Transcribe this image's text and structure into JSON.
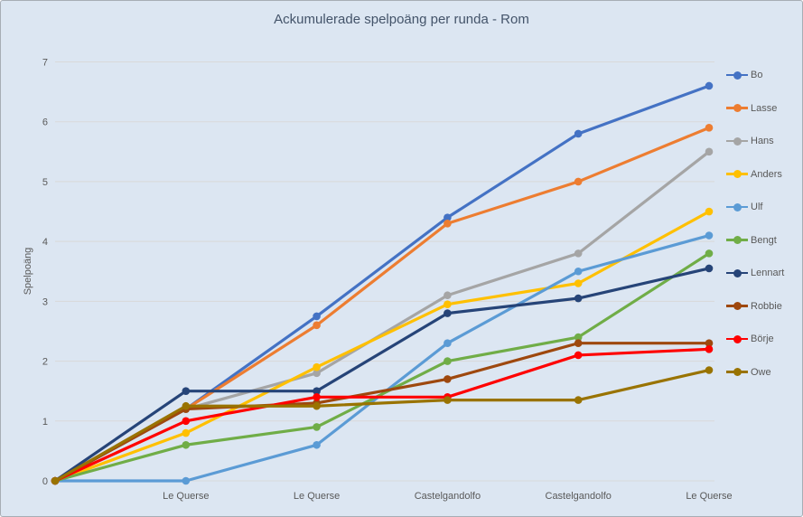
{
  "chart_data": {
    "type": "line",
    "title": "Ackumulerade spelpoäng per runda - Rom",
    "ylabel": "Spelpoäng",
    "xlabel": "",
    "ylim": [
      0,
      7
    ],
    "ytick_step": 1,
    "grid": true,
    "legend_position": "right",
    "background_color": "#dce6f2",
    "gridline_color": "#d9d9d9",
    "text_color": "#595959",
    "title_color": "#44546a",
    "categories": [
      "",
      "Le Querse",
      "Le Querse",
      "Castelgandolfo",
      "Castelgandolfo",
      "Le Querse"
    ],
    "series": [
      {
        "name": "Bo",
        "color": "#4472C4",
        "values": [
          0,
          1.2,
          2.75,
          4.4,
          5.8,
          6.6
        ]
      },
      {
        "name": "Lasse",
        "color": "#ED7D31",
        "values": [
          0,
          1.2,
          2.6,
          4.3,
          5.0,
          5.9
        ]
      },
      {
        "name": "Hans",
        "color": "#A5A5A5",
        "values": [
          0,
          1.2,
          1.8,
          3.1,
          3.8,
          5.5
        ]
      },
      {
        "name": "Anders",
        "color": "#FFC000",
        "values": [
          0,
          0.8,
          1.9,
          2.95,
          3.3,
          4.5
        ]
      },
      {
        "name": "Ulf",
        "color": "#5B9BD5",
        "values": [
          0,
          0,
          0.6,
          2.3,
          3.5,
          4.1
        ]
      },
      {
        "name": "Bengt",
        "color": "#70AD47",
        "values": [
          0,
          0.6,
          0.9,
          2.0,
          2.4,
          3.8
        ]
      },
      {
        "name": "Lennart",
        "color": "#264478",
        "values": [
          0,
          1.5,
          1.5,
          2.8,
          3.05,
          3.55
        ]
      },
      {
        "name": "Robbie",
        "color": "#9E480E",
        "values": [
          0,
          1.2,
          1.3,
          1.7,
          2.3,
          2.3
        ]
      },
      {
        "name": "Börje",
        "color": "#FF0000",
        "values": [
          0,
          1.0,
          1.4,
          1.4,
          2.1,
          2.2
        ]
      },
      {
        "name": "Owe",
        "color": "#997300",
        "values": [
          0,
          1.25,
          1.25,
          1.35,
          1.35,
          1.85
        ]
      }
    ]
  }
}
